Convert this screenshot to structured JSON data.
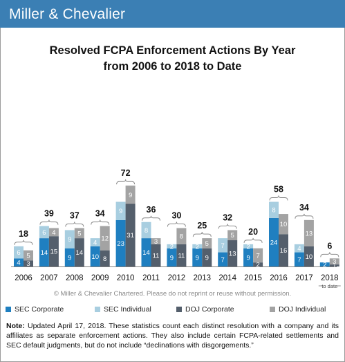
{
  "brand": "Miller & Chevalier",
  "title_line1": "Resolved FCPA Enforcement Actions By Year",
  "title_line2": "from 2006 to 2018 to Date",
  "copyright": "© Miller & Chevalier Chartered. Please do not reprint or reuse without permission.",
  "note_label": "Note:",
  "note_text": "Updated April 17, 2018. These statistics count each distinct resolution with a company and its affiliates as separate enforcement actions. They also include certain FCPA-related settlements and SEC default judgments, but do not include “declinations with disgorgements.”",
  "to_date_label": "to date",
  "chart_data": {
    "type": "bar",
    "title": "Resolved FCPA Enforcement Actions By Year from 2006 to 2018 to Date",
    "categories": [
      "2006",
      "2007",
      "2008",
      "2009",
      "2010",
      "2011",
      "2012",
      "2013",
      "2014",
      "2015",
      "2016",
      "2017",
      "2018"
    ],
    "totals": [
      18,
      39,
      37,
      34,
      72,
      36,
      30,
      25,
      32,
      20,
      58,
      34,
      6
    ],
    "series": [
      {
        "name": "SEC Corporate",
        "group": "SEC",
        "color": "#1f7fc0",
        "values": [
          4,
          14,
          9,
          10,
          23,
          14,
          9,
          9,
          7,
          9,
          24,
          7,
          2
        ]
      },
      {
        "name": "SEC Individual",
        "group": "SEC",
        "color": "#a8cee0",
        "values": [
          6,
          6,
          9,
          4,
          9,
          8,
          2,
          2,
          7,
          2,
          8,
          4,
          0
        ]
      },
      {
        "name": "DOJ Corporate",
        "group": "DOJ",
        "color": "#545f6c",
        "values": [
          3,
          15,
          14,
          8,
          31,
          11,
          11,
          9,
          13,
          2,
          16,
          10,
          1
        ]
      },
      {
        "name": "DOJ Individual",
        "group": "DOJ",
        "color": "#a3a3a3",
        "values": [
          5,
          4,
          5,
          12,
          9,
          3,
          8,
          5,
          5,
          7,
          10,
          13,
          3
        ]
      }
    ],
    "legend_position": "bottom",
    "grid": false
  }
}
